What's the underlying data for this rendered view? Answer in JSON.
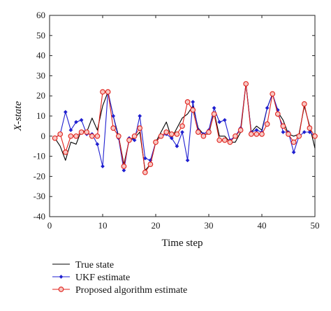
{
  "chart_data": {
    "type": "line",
    "xlabel": "Time step",
    "ylabel": "X-state",
    "xlim": [
      0,
      50
    ],
    "ylim": [
      -40,
      60
    ],
    "xticks": [
      0,
      10,
      20,
      30,
      40,
      50
    ],
    "yticks": [
      -40,
      -30,
      -20,
      -10,
      0,
      10,
      20,
      30,
      40,
      50,
      60
    ],
    "grid": false,
    "legend_position": "bottom",
    "x": [
      1,
      2,
      3,
      4,
      5,
      6,
      7,
      8,
      9,
      10,
      11,
      12,
      13,
      14,
      15,
      16,
      17,
      18,
      19,
      20,
      21,
      22,
      23,
      24,
      25,
      26,
      27,
      28,
      29,
      30,
      31,
      32,
      33,
      34,
      35,
      36,
      37,
      38,
      39,
      40,
      41,
      42,
      43,
      44,
      45,
      46,
      47,
      48,
      49,
      50
    ],
    "series": [
      {
        "name": "True state",
        "color": "#000000",
        "marker": "none",
        "values": [
          -1,
          -5,
          -12,
          -3,
          -4,
          3,
          2,
          9,
          3,
          15,
          22,
          10,
          0,
          -14,
          -2,
          -1,
          2,
          -17,
          -14,
          -3,
          2,
          7,
          -1,
          4,
          9,
          11,
          15,
          4,
          1,
          1,
          12,
          0,
          0,
          -3,
          -3,
          2,
          26,
          2,
          5,
          3,
          14,
          21,
          12,
          8,
          1,
          0,
          1,
          15,
          5,
          -6
        ]
      },
      {
        "name": "UKF estimate",
        "color": "#1f1fd0",
        "marker": "diamond",
        "values": [
          -1,
          1,
          12,
          3,
          7,
          8,
          1,
          1,
          -4,
          -15,
          22,
          10,
          -1,
          -17,
          -1,
          -2,
          10,
          -11,
          -12,
          -3,
          0,
          1,
          -1,
          -5,
          2,
          -12,
          17,
          3,
          1,
          3,
          14,
          7,
          8,
          -2,
          0,
          4,
          26,
          2,
          3,
          2,
          14,
          21,
          13,
          2,
          2,
          -8,
          0,
          2,
          2,
          0
        ]
      },
      {
        "name": "Proposed algorithm estimate",
        "color": "#e0201a",
        "marker": "circle",
        "values": [
          -1,
          1,
          -8,
          0,
          0,
          2,
          2,
          0,
          0,
          22,
          22,
          4,
          0,
          -15,
          -2,
          0,
          4,
          -18,
          -14,
          -3,
          0,
          2,
          1,
          1,
          5,
          17,
          13,
          2,
          0,
          2,
          11,
          -2,
          -2,
          -3,
          0,
          3,
          26,
          1,
          1,
          1,
          6,
          21,
          11,
          5,
          1,
          -3,
          0,
          16,
          4,
          0
        ]
      }
    ]
  }
}
